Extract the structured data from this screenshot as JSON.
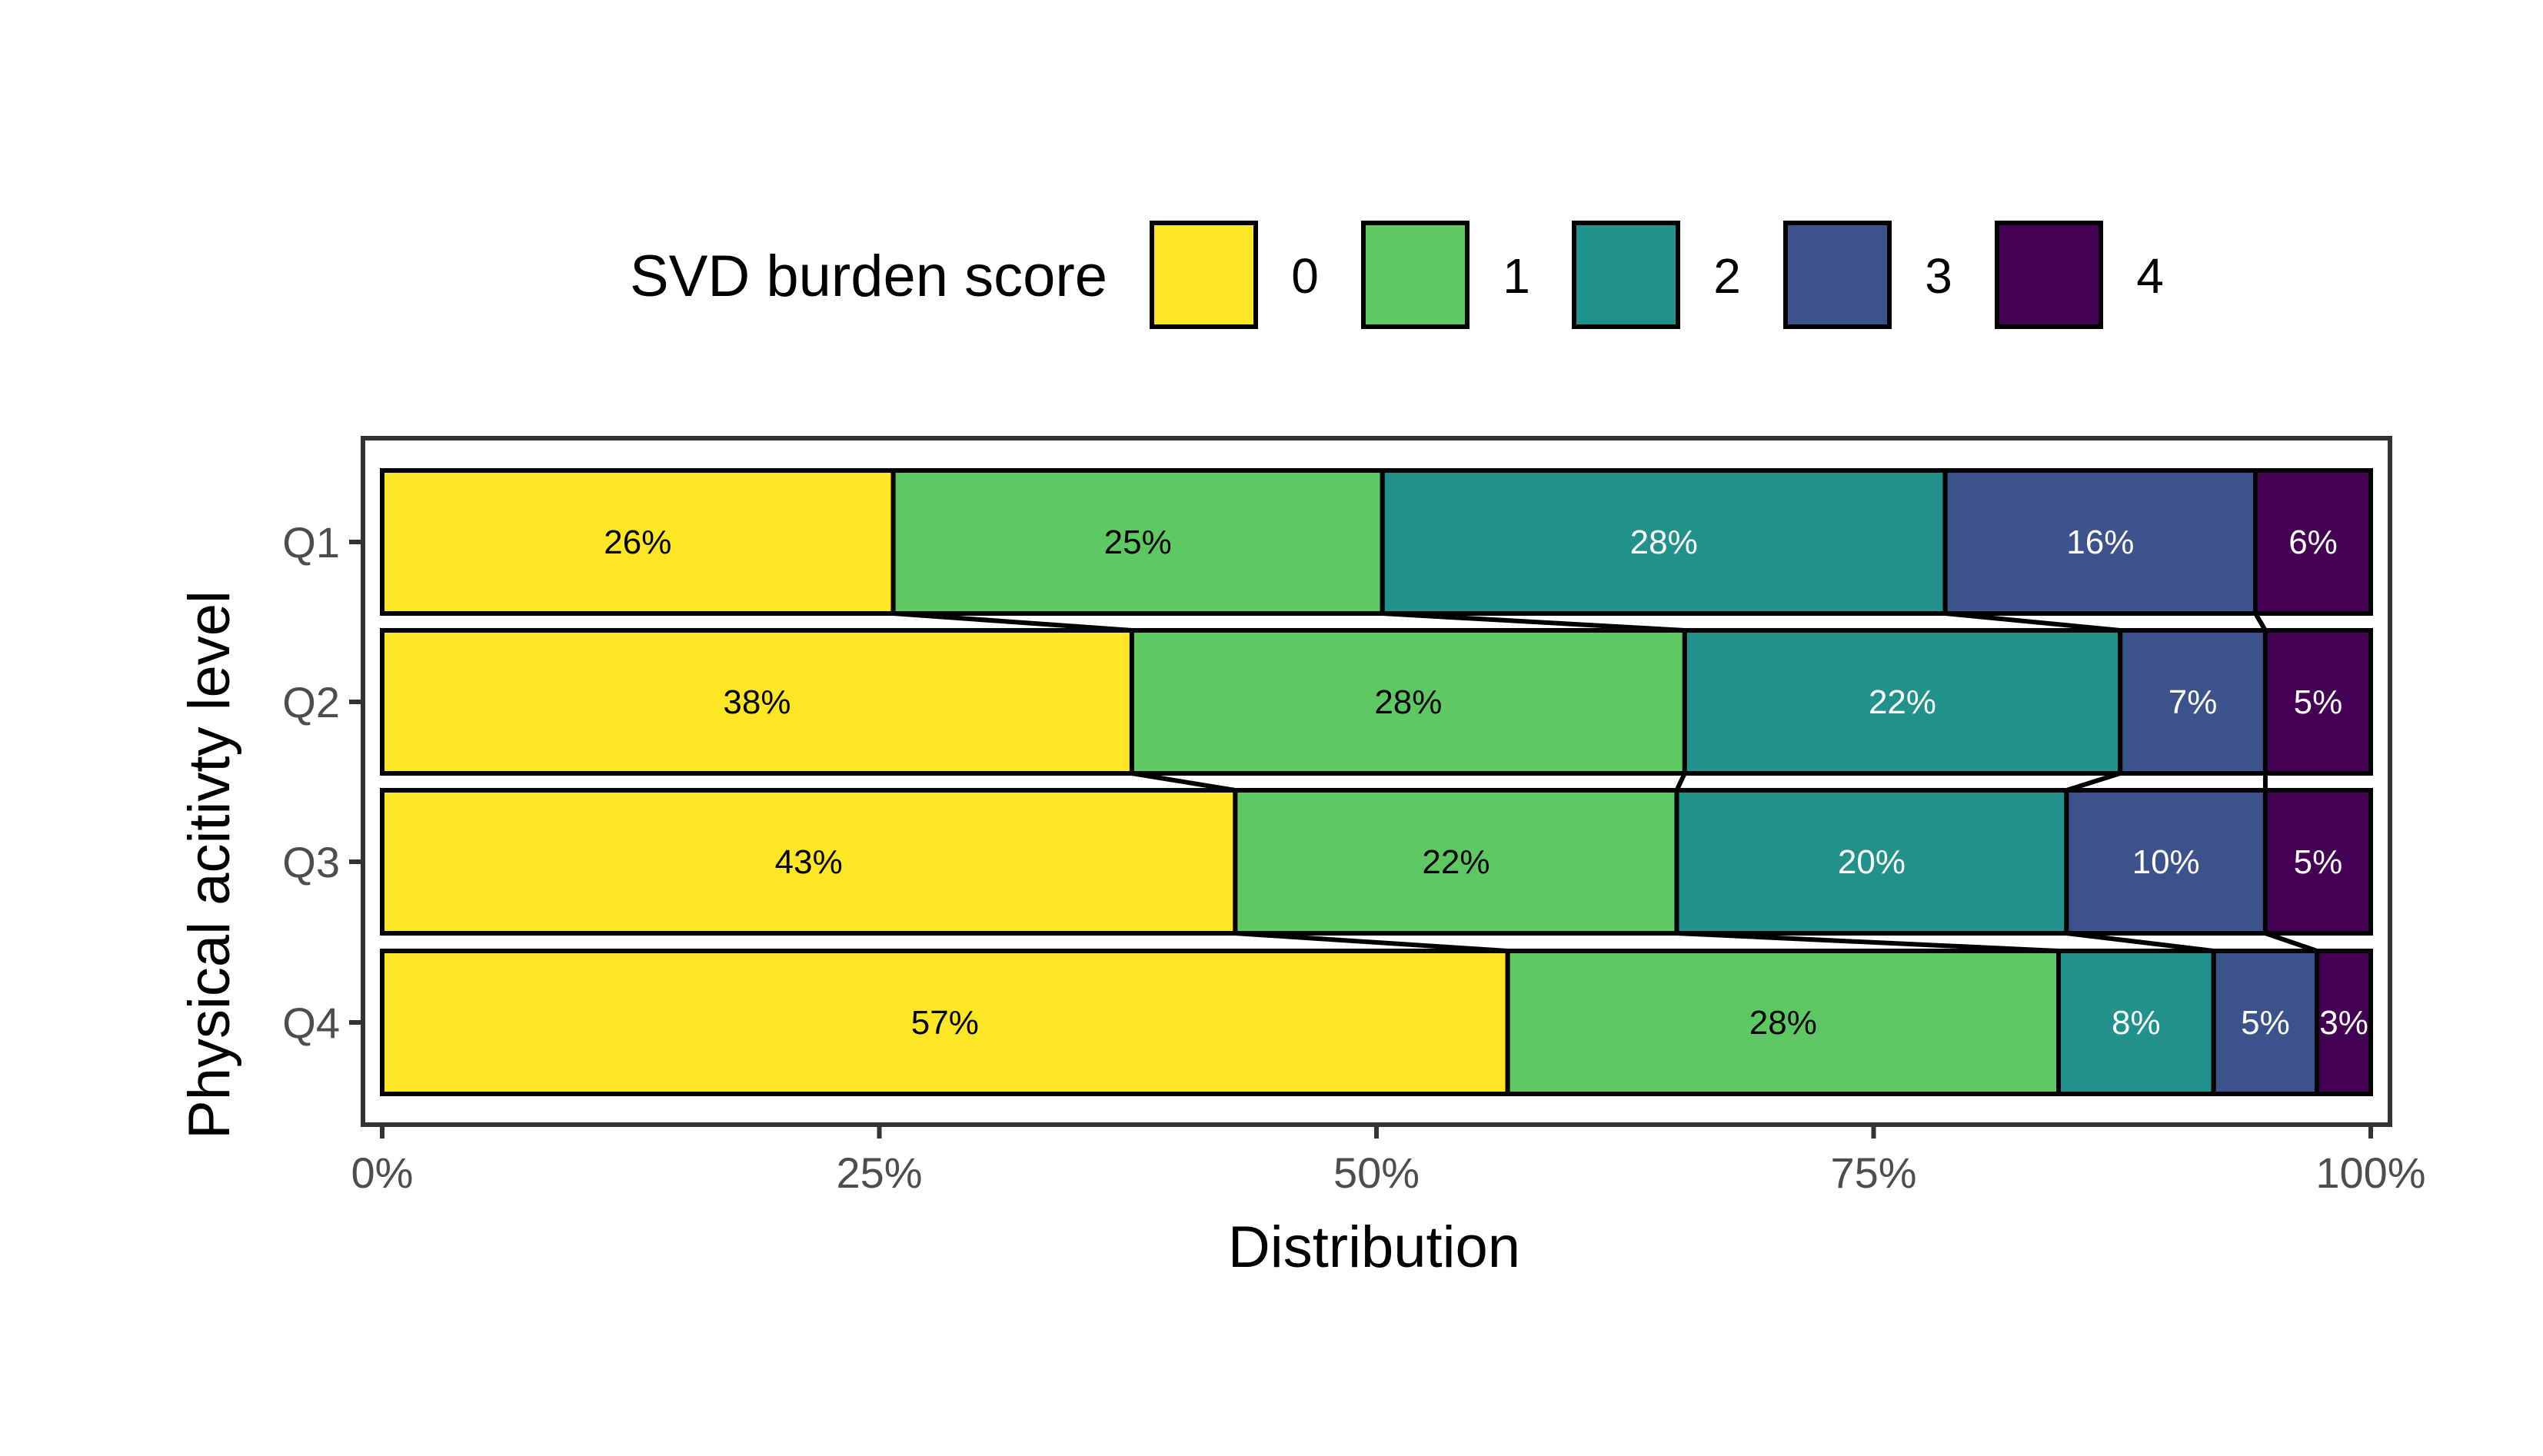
{
  "chart_data": {
    "type": "bar",
    "orientation": "horizontal",
    "stacked": "percent",
    "categories": [
      "Q1",
      "Q2",
      "Q3",
      "Q4"
    ],
    "xlabel": "Distribution",
    "ylabel": "Physical acitivty level",
    "xlim": [
      0,
      100
    ],
    "xticks": [
      "0%",
      "25%",
      "50%",
      "75%",
      "100%"
    ],
    "legend": {
      "title": "SVD burden score",
      "position": "top"
    },
    "series": [
      {
        "name": "0",
        "color": "#FDE725",
        "values": [
          25.7,
          37.7,
          42.9,
          56.6
        ],
        "labels": [
          "26%",
          "38%",
          "43%",
          "57%"
        ]
      },
      {
        "name": "1",
        "color": "#5EC962",
        "values": [
          24.6,
          27.8,
          22.2,
          27.7
        ],
        "labels": [
          "25%",
          "28%",
          "22%",
          "28%"
        ]
      },
      {
        "name": "2",
        "color": "#21918C",
        "values": [
          28.3,
          21.9,
          19.6,
          7.8
        ],
        "labels": [
          "28%",
          "22%",
          "20%",
          "8%"
        ]
      },
      {
        "name": "3",
        "color": "#3B528B",
        "values": [
          15.6,
          7.3,
          10.0,
          5.2
        ],
        "labels": [
          "16%",
          "7%",
          "10%",
          "5%"
        ]
      },
      {
        "name": "4",
        "color": "#440154",
        "values": [
          5.8,
          5.3,
          5.3,
          2.7
        ],
        "labels": [
          "6%",
          "5%",
          "5%",
          "3%"
        ]
      }
    ],
    "grid": false
  }
}
